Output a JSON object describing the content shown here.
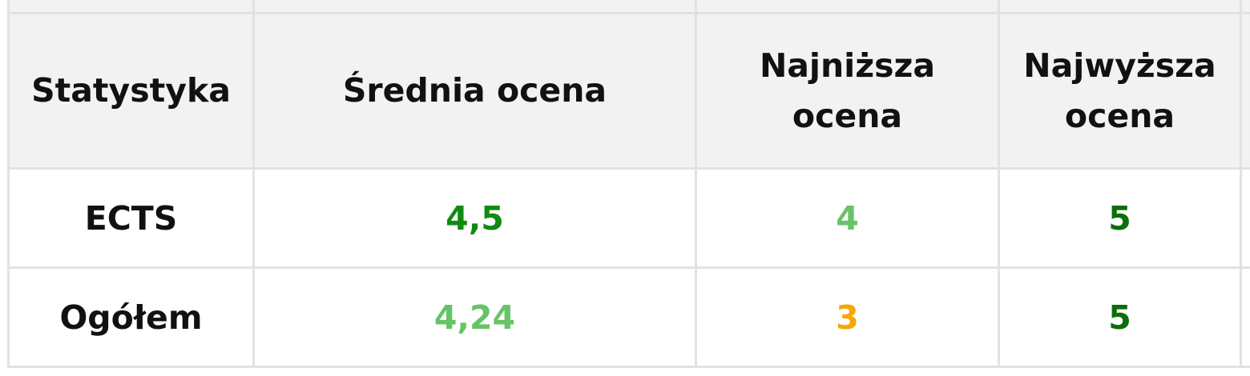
{
  "table": {
    "headers": [
      "Statystyka",
      "Średnia ocena",
      "Najniższa ocena",
      "Najwyższa ocena"
    ],
    "rows": [
      {
        "label": "ECTS",
        "cells": [
          {
            "value": "4,5",
            "color": "#118a11"
          },
          {
            "value": "4",
            "color": "#66c466"
          },
          {
            "value": "5",
            "color": "#0b6e0b"
          }
        ]
      },
      {
        "label": "Ogółem",
        "cells": [
          {
            "value": "4,24",
            "color": "#66c466"
          },
          {
            "value": "3",
            "color": "#f5a800"
          },
          {
            "value": "5",
            "color": "#0b6e0b"
          }
        ]
      }
    ]
  },
  "colors": {
    "header_background": "#f2f2f2",
    "border": "#e2e2e2",
    "text": "#111111"
  }
}
